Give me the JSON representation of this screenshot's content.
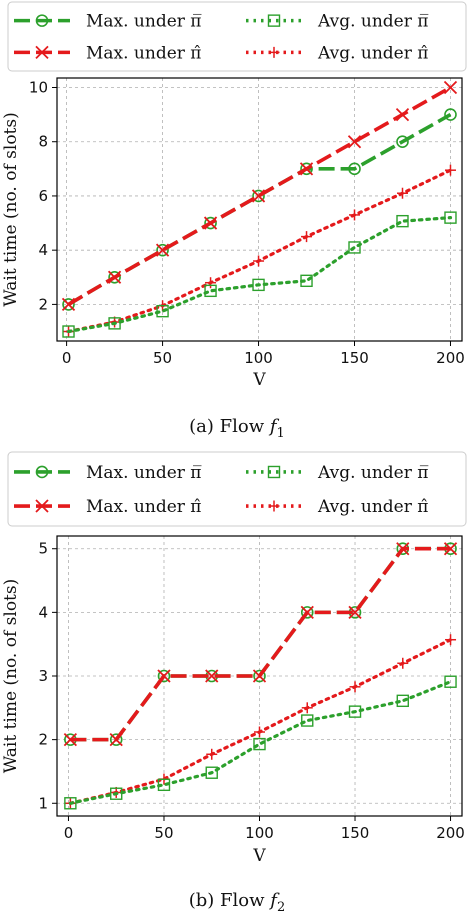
{
  "chart_data": [
    {
      "type": "line",
      "caption": "(a) Flow f1",
      "caption_prefix": "(a) Flow ",
      "caption_var": "f",
      "caption_sub": "1",
      "xlabel": "V",
      "ylabel": "Wait time (no. of slots)",
      "x": [
        1,
        25,
        50,
        75,
        100,
        125,
        150,
        175,
        200
      ],
      "xlim": [
        -5,
        206
      ],
      "ylim": [
        0.65,
        10.35
      ],
      "xticks": [
        0,
        50,
        100,
        150,
        200
      ],
      "yticks": [
        2,
        4,
        6,
        8,
        10
      ],
      "grid": true,
      "legend_position": "top, outside",
      "series": [
        {
          "name": "Max. under π̅",
          "values": [
            2,
            3,
            4,
            5,
            6,
            7,
            7,
            8,
            9
          ],
          "color": "#2ca02c",
          "linestyle": "dashed",
          "marker": "circle"
        },
        {
          "name": "Max. under π̂",
          "values": [
            2,
            3,
            4,
            5,
            6,
            7,
            8,
            9,
            10
          ],
          "color": "#e41a1c",
          "linestyle": "dashed",
          "marker": "x"
        },
        {
          "name": "Avg. under π̅",
          "values": [
            1.0,
            1.3,
            1.75,
            2.5,
            2.72,
            2.87,
            4.1,
            5.07,
            5.2
          ],
          "color": "#2ca02c",
          "linestyle": "dotted",
          "marker": "square"
        },
        {
          "name": "Avg. under π̂",
          "values": [
            1.0,
            1.35,
            1.95,
            2.8,
            3.6,
            4.5,
            5.3,
            6.1,
            6.95
          ],
          "color": "#e41a1c",
          "linestyle": "dotted",
          "marker": "plus"
        }
      ]
    },
    {
      "type": "line",
      "caption": "(b) Flow f2",
      "caption_prefix": "(b) Flow ",
      "caption_var": "f",
      "caption_sub": "2",
      "xlabel": "V",
      "ylabel": "Wait time (no. of slots)",
      "x": [
        1,
        25,
        50,
        75,
        100,
        125,
        150,
        175,
        200
      ],
      "xlim": [
        -6,
        206
      ],
      "ylim": [
        0.8,
        5.2
      ],
      "xticks": [
        0,
        50,
        100,
        150,
        200
      ],
      "yticks": [
        1,
        2,
        3,
        4,
        5
      ],
      "grid": true,
      "legend_position": "top, outside",
      "series": [
        {
          "name": "Max. under π̅",
          "values": [
            2,
            2,
            3,
            3,
            3,
            4,
            4,
            5,
            5
          ],
          "color": "#2ca02c",
          "linestyle": "dashed",
          "marker": "circle"
        },
        {
          "name": "Max. under π̂",
          "values": [
            2,
            2,
            3,
            3,
            3,
            4,
            4,
            5,
            5
          ],
          "color": "#e41a1c",
          "linestyle": "dashed",
          "marker": "x"
        },
        {
          "name": "Avg. under π̅",
          "values": [
            1.0,
            1.15,
            1.29,
            1.48,
            1.93,
            2.3,
            2.44,
            2.61,
            2.91
          ],
          "color": "#2ca02c",
          "linestyle": "dotted",
          "marker": "square"
        },
        {
          "name": "Avg. under π̂",
          "values": [
            1.0,
            1.17,
            1.38,
            1.77,
            2.12,
            2.5,
            2.83,
            3.2,
            3.57
          ],
          "color": "#e41a1c",
          "linestyle": "dotted",
          "marker": "plus"
        }
      ]
    }
  ]
}
